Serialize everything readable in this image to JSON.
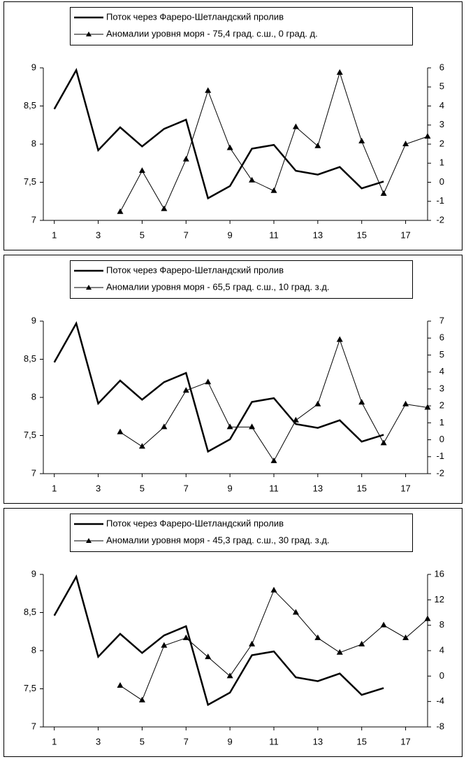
{
  "chart_data": [
    {
      "type": "line",
      "x": [
        1,
        2,
        3,
        4,
        5,
        6,
        7,
        8,
        9,
        10,
        11,
        12,
        13,
        14,
        15,
        16,
        17,
        18
      ],
      "xlim": [
        0.5,
        18
      ],
      "xticks": [
        1,
        3,
        5,
        7,
        9,
        11,
        13,
        15,
        17
      ],
      "ylim": [
        7,
        9
      ],
      "yticks": [
        7,
        {
          "value": 7.5,
          "label": "7,5"
        },
        8,
        {
          "value": 8.5,
          "label": "8,5"
        },
        9
      ],
      "y2lim": [
        -2,
        6
      ],
      "y2ticks": [
        -2,
        -1,
        0,
        1,
        2,
        3,
        4,
        5,
        6
      ],
      "series": [
        {
          "name": "Поток через Фареро-Шетландский пролив",
          "color": "#000000",
          "values": [
            8.46,
            8.97,
            7.92,
            8.22,
            7.97,
            8.2,
            8.32,
            7.29,
            7.45,
            7.94,
            7.99,
            7.65,
            7.6,
            7.7,
            7.42,
            7.51,
            null,
            null
          ]
        },
        {
          "name": "Аномалии уровня моря - 75,4 град. с.ш., 0 град. д.",
          "color": "#000000",
          "axis": "y2",
          "marker": "triangle",
          "values": [
            null,
            null,
            null,
            -1.55,
            0.6,
            -1.4,
            1.2,
            4.8,
            1.8,
            0.1,
            -0.45,
            2.9,
            1.9,
            5.75,
            2.15,
            -0.6,
            2.0,
            2.4
          ]
        }
      ]
    },
    {
      "type": "line",
      "x": [
        1,
        2,
        3,
        4,
        5,
        6,
        7,
        8,
        9,
        10,
        11,
        12,
        13,
        14,
        15,
        16,
        17,
        18
      ],
      "xlim": [
        0.5,
        18
      ],
      "xticks": [
        1,
        3,
        5,
        7,
        9,
        11,
        13,
        15,
        17
      ],
      "ylim": [
        7,
        9
      ],
      "yticks": [
        7,
        {
          "value": 7.5,
          "label": "7,5"
        },
        8,
        {
          "value": 8.5,
          "label": "8,5"
        },
        9
      ],
      "y2lim": [
        -2,
        7
      ],
      "y2ticks": [
        -2,
        -1,
        0,
        1,
        2,
        3,
        4,
        5,
        6,
        7
      ],
      "series": [
        {
          "name": "Поток через Фареро-Шетландский пролив",
          "color": "#000000",
          "values": [
            8.46,
            8.97,
            7.92,
            8.22,
            7.97,
            8.2,
            8.32,
            7.29,
            7.45,
            7.94,
            7.99,
            7.65,
            7.6,
            7.7,
            7.42,
            7.51,
            null,
            null
          ]
        },
        {
          "name": "Аномалии уровня моря - 65,5 град. с.ш., 10 град. з.д.",
          "color": "#000000",
          "axis": "y2",
          "marker": "triangle",
          "values": [
            null,
            null,
            null,
            0.45,
            -0.4,
            0.75,
            2.9,
            3.4,
            0.75,
            0.75,
            -1.25,
            1.15,
            2.1,
            5.9,
            2.2,
            -0.2,
            2.1,
            1.9
          ]
        }
      ]
    },
    {
      "type": "line",
      "x": [
        1,
        2,
        3,
        4,
        5,
        6,
        7,
        8,
        9,
        10,
        11,
        12,
        13,
        14,
        15,
        16,
        17,
        18
      ],
      "xlim": [
        0.5,
        18
      ],
      "xticks": [
        1,
        3,
        5,
        7,
        9,
        11,
        13,
        15,
        17
      ],
      "ylim": [
        7,
        9
      ],
      "yticks": [
        7,
        {
          "value": 7.5,
          "label": "7,5"
        },
        8,
        {
          "value": 8.5,
          "label": "8,5"
        },
        9
      ],
      "y2lim": [
        -8,
        16
      ],
      "y2ticks": [
        -8,
        -4,
        0,
        4,
        8,
        12,
        16
      ],
      "series": [
        {
          "name": "Поток через Фареро-Шетландский пролив",
          "color": "#000000",
          "values": [
            8.46,
            8.97,
            7.92,
            8.22,
            7.97,
            8.2,
            8.32,
            7.29,
            7.45,
            7.94,
            7.99,
            7.65,
            7.6,
            7.7,
            7.42,
            7.51,
            null,
            null
          ]
        },
        {
          "name": "Аномалии уровня моря - 45,3 град. с.ш., 30 град. з.д.",
          "color": "#000000",
          "axis": "y2",
          "marker": "triangle",
          "values": [
            null,
            null,
            null,
            -1.5,
            -3.8,
            4.8,
            6.0,
            3.0,
            0.0,
            5.0,
            13.5,
            10.0,
            6.0,
            3.7,
            5.0,
            8.0,
            6.0,
            9.0
          ]
        }
      ]
    }
  ]
}
